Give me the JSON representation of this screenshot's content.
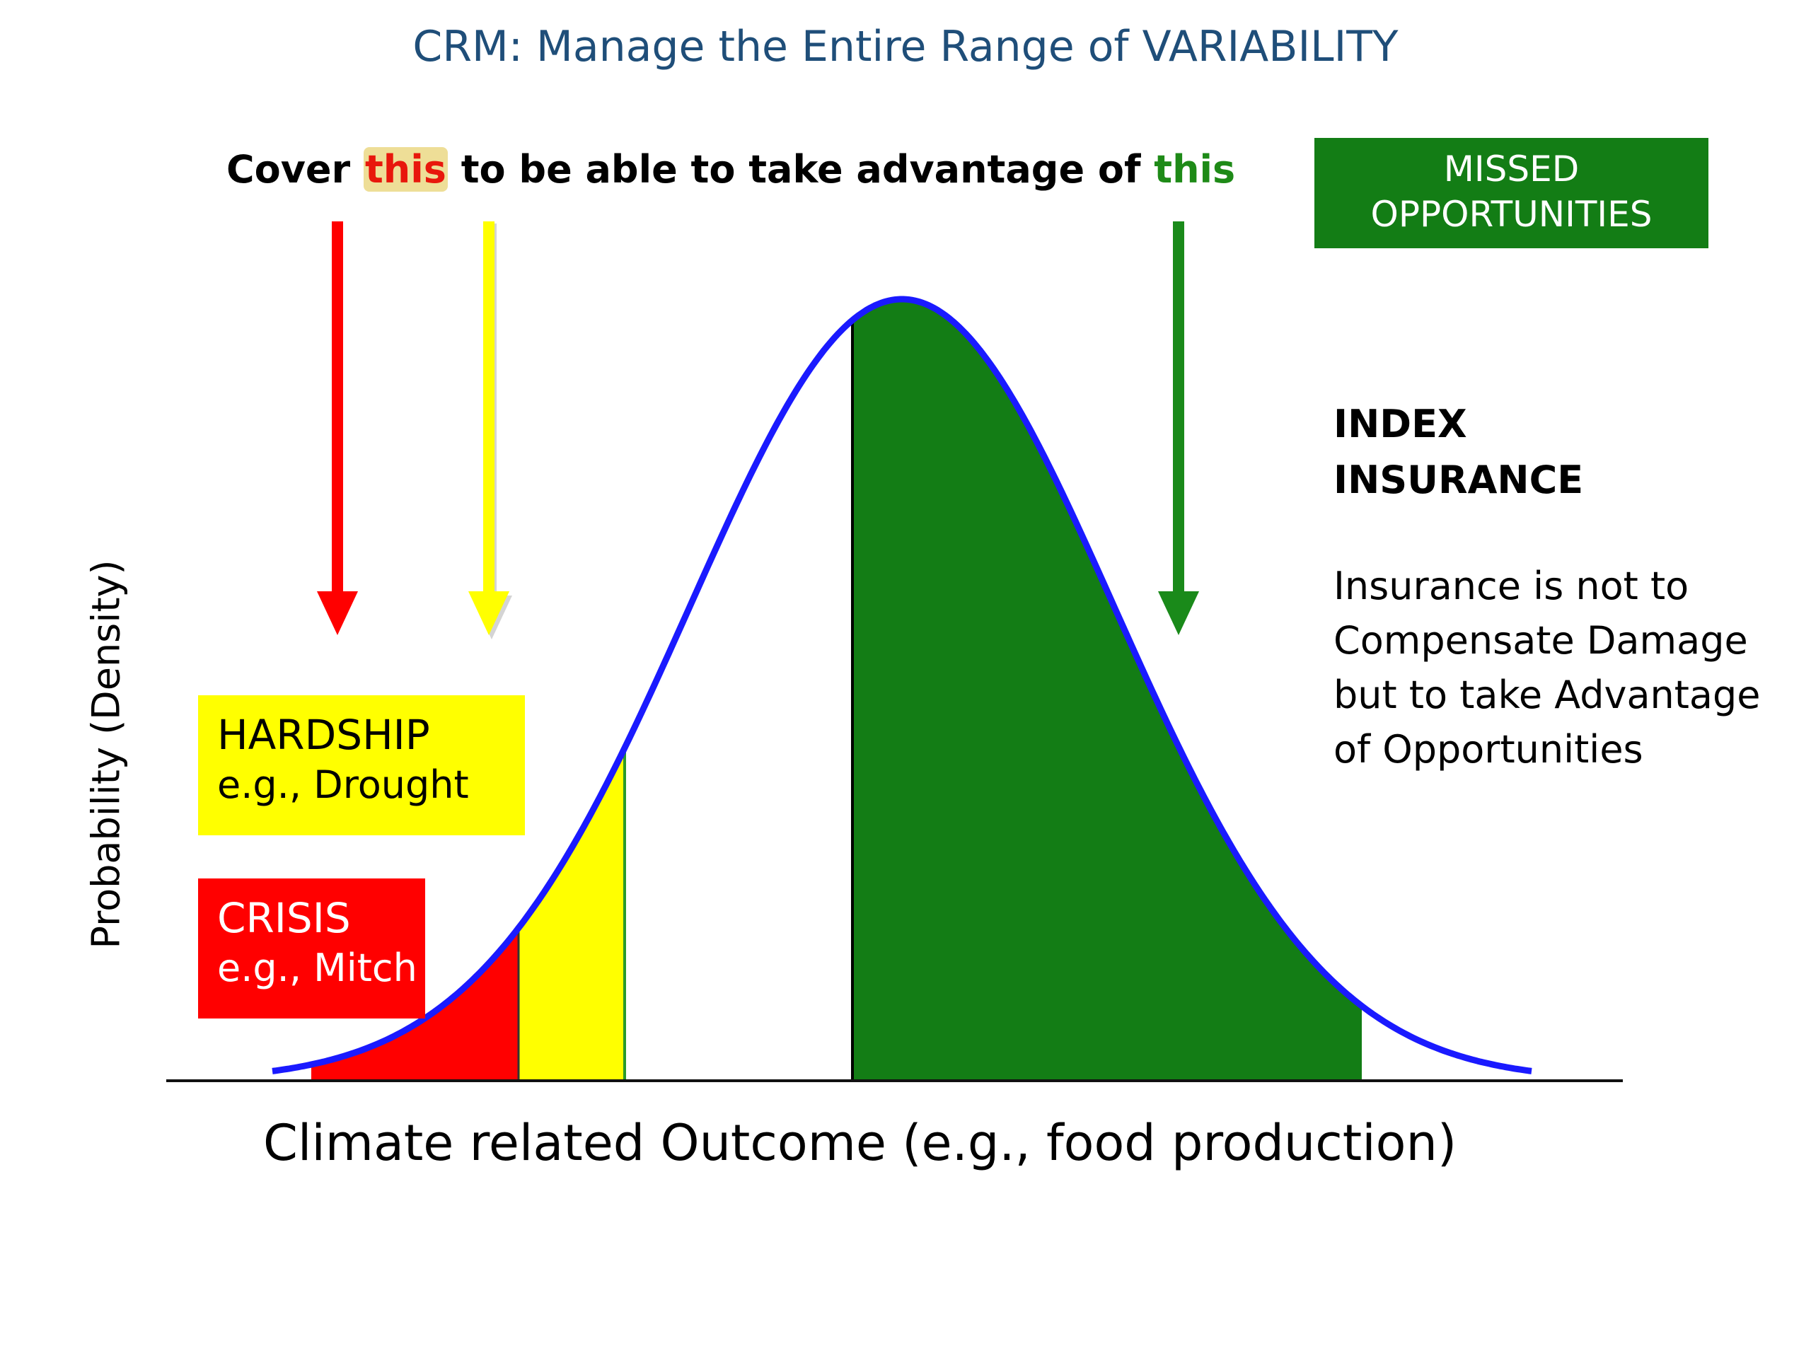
{
  "title": "CRM: Manage the Entire Range of VARIABILITY",
  "cover_line": {
    "part1": "Cover ",
    "part2": "this",
    "part3": " to be able to take advantage of ",
    "part4": "this"
  },
  "missed_box": {
    "line1": "MISSED",
    "line2": "OPPORTUNITIES"
  },
  "hardship_box": {
    "title": "HARDSHIP",
    "subtitle": "e.g., Drought"
  },
  "crisis_box": {
    "title": "CRISIS",
    "subtitle": "e.g., Mitch"
  },
  "index_insurance": {
    "title_line1": "INDEX",
    "title_line2": "INSURANCE",
    "body": [
      "Insurance is not to",
      "Compensate Damage",
      "but to take Advantage",
      "of Opportunities"
    ]
  },
  "axes": {
    "ylabel": "Probability (Density)",
    "xlabel": "Climate related Outcome (e.g., food production)"
  },
  "colors": {
    "title": "#1f4e79",
    "curve": "#1a1aff",
    "crisis": "#ff0000",
    "hardship": "#ffff00",
    "opportunity": "#137d15",
    "red_arrow": "#ff0000",
    "yellow_arrow": "#ffff00",
    "green_arrow": "#1a8a1a"
  },
  "arrows": [
    "red-arrow",
    "yellow-arrow",
    "green-arrow"
  ]
}
